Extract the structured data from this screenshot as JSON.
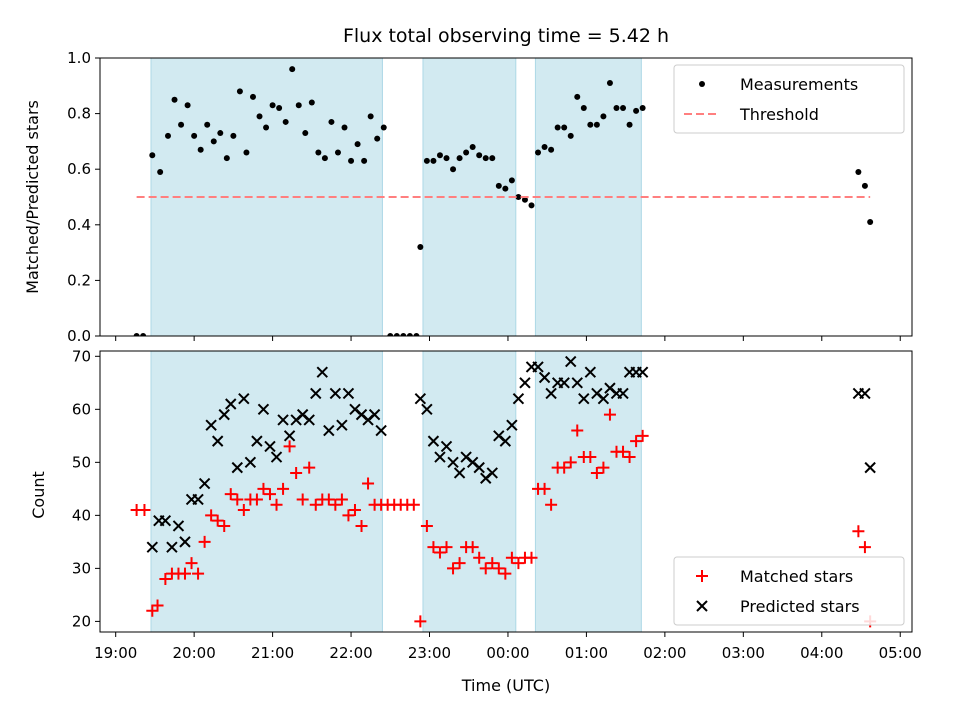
{
  "chart_data": [
    {
      "type": "scatter",
      "title": "Flux total observing time = 5.42 h",
      "xlabel": "",
      "ylabel": "Matched/Predicted stars",
      "ylim": [
        0,
        1.0
      ],
      "yticks": [
        "0.0",
        "0.2",
        "0.4",
        "0.6",
        "0.8",
        "1.0"
      ],
      "xticks": [
        "19:00",
        "20:00",
        "21:00",
        "22:00",
        "23:00",
        "00:00",
        "01:00",
        "02:00",
        "03:00",
        "04:00",
        "05:00"
      ],
      "show_x_tick_labels": false,
      "legend_position": "top-right",
      "shaded_intervals": [
        [
          "19:27",
          "22:24"
        ],
        [
          "22:55",
          "00:06"
        ],
        [
          "00:21",
          "01:42"
        ]
      ],
      "shade_color": "#add8e6",
      "series": [
        {
          "name": "Measurements",
          "marker": "dot",
          "color": "#000000",
          "points": [
            [
              "19:16",
              0.0
            ],
            [
              "19:21",
              0.0
            ],
            [
              "19:28",
              0.65
            ],
            [
              "19:34",
              0.59
            ],
            [
              "19:40",
              0.72
            ],
            [
              "19:45",
              0.85
            ],
            [
              "19:50",
              0.76
            ],
            [
              "19:55",
              0.83
            ],
            [
              "20:00",
              0.72
            ],
            [
              "20:05",
              0.67
            ],
            [
              "20:10",
              0.76
            ],
            [
              "20:15",
              0.7
            ],
            [
              "20:20",
              0.73
            ],
            [
              "20:25",
              0.64
            ],
            [
              "20:30",
              0.72
            ],
            [
              "20:35",
              0.88
            ],
            [
              "20:40",
              0.66
            ],
            [
              "20:45",
              0.86
            ],
            [
              "20:50",
              0.79
            ],
            [
              "20:55",
              0.75
            ],
            [
              "21:00",
              0.83
            ],
            [
              "21:05",
              0.82
            ],
            [
              "21:10",
              0.77
            ],
            [
              "21:15",
              0.96
            ],
            [
              "21:20",
              0.83
            ],
            [
              "21:25",
              0.73
            ],
            [
              "21:30",
              0.84
            ],
            [
              "21:35",
              0.66
            ],
            [
              "21:40",
              0.64
            ],
            [
              "21:45",
              0.77
            ],
            [
              "21:50",
              0.66
            ],
            [
              "21:55",
              0.75
            ],
            [
              "22:00",
              0.63
            ],
            [
              "22:05",
              0.69
            ],
            [
              "22:10",
              0.63
            ],
            [
              "22:15",
              0.79
            ],
            [
              "22:20",
              0.71
            ],
            [
              "22:25",
              0.75
            ],
            [
              "22:30",
              0.0
            ],
            [
              "22:35",
              0.0
            ],
            [
              "22:40",
              0.0
            ],
            [
              "22:45",
              0.0
            ],
            [
              "22:50",
              0.0
            ],
            [
              "22:53",
              0.32
            ],
            [
              "22:58",
              0.63
            ],
            [
              "23:03",
              0.63
            ],
            [
              "23:08",
              0.65
            ],
            [
              "23:13",
              0.64
            ],
            [
              "23:18",
              0.6
            ],
            [
              "23:23",
              0.64
            ],
            [
              "23:28",
              0.66
            ],
            [
              "23:33",
              0.68
            ],
            [
              "23:38",
              0.65
            ],
            [
              "23:43",
              0.64
            ],
            [
              "23:48",
              0.64
            ],
            [
              "23:53",
              0.54
            ],
            [
              "23:58",
              0.53
            ],
            [
              "00:03",
              0.56
            ],
            [
              "00:08",
              0.5
            ],
            [
              "00:13",
              0.49
            ],
            [
              "00:18",
              0.47
            ],
            [
              "00:23",
              0.66
            ],
            [
              "00:28",
              0.68
            ],
            [
              "00:33",
              0.67
            ],
            [
              "00:38",
              0.75
            ],
            [
              "00:43",
              0.75
            ],
            [
              "00:48",
              0.72
            ],
            [
              "00:53",
              0.86
            ],
            [
              "00:58",
              0.82
            ],
            [
              "01:03",
              0.76
            ],
            [
              "01:08",
              0.76
            ],
            [
              "01:13",
              0.79
            ],
            [
              "01:18",
              0.91
            ],
            [
              "01:23",
              0.82
            ],
            [
              "01:28",
              0.82
            ],
            [
              "01:33",
              0.76
            ],
            [
              "01:38",
              0.81
            ],
            [
              "01:43",
              0.82
            ],
            [
              "04:28",
              0.59
            ],
            [
              "04:33",
              0.54
            ],
            [
              "04:37",
              0.41
            ]
          ]
        },
        {
          "name": "Threshold",
          "style": "dashed",
          "color": "#ff7f7f",
          "points": [
            [
              "19:16",
              0.5
            ],
            [
              "04:37",
              0.5
            ]
          ]
        }
      ]
    },
    {
      "type": "scatter",
      "title": "",
      "xlabel": "Time (UTC)",
      "ylabel": "Count",
      "ylim": [
        18,
        71
      ],
      "yticks": [
        "20",
        "30",
        "40",
        "50",
        "60",
        "70"
      ],
      "xticks": [
        "19:00",
        "20:00",
        "21:00",
        "22:00",
        "23:00",
        "00:00",
        "01:00",
        "02:00",
        "03:00",
        "04:00",
        "05:00"
      ],
      "show_x_tick_labels": true,
      "legend_position": "bottom-right",
      "shaded_intervals": [
        [
          "19:27",
          "22:24"
        ],
        [
          "22:55",
          "00:06"
        ],
        [
          "00:21",
          "01:42"
        ]
      ],
      "shade_color": "#add8e6",
      "series": [
        {
          "name": "Matched stars",
          "marker": "plus",
          "color": "#ff0000",
          "points": [
            [
              "19:16",
              41
            ],
            [
              "19:22",
              41
            ],
            [
              "19:28",
              22
            ],
            [
              "19:32",
              23
            ],
            [
              "19:38",
              28
            ],
            [
              "19:43",
              29
            ],
            [
              "19:48",
              29
            ],
            [
              "19:53",
              29
            ],
            [
              "19:58",
              31
            ],
            [
              "20:03",
              29
            ],
            [
              "20:08",
              35
            ],
            [
              "20:13",
              40
            ],
            [
              "20:18",
              39
            ],
            [
              "20:23",
              38
            ],
            [
              "20:28",
              44
            ],
            [
              "20:33",
              43
            ],
            [
              "20:38",
              41
            ],
            [
              "20:43",
              43
            ],
            [
              "20:48",
              43
            ],
            [
              "20:53",
              45
            ],
            [
              "20:58",
              44
            ],
            [
              "21:03",
              42
            ],
            [
              "21:08",
              45
            ],
            [
              "21:13",
              53
            ],
            [
              "21:18",
              48
            ],
            [
              "21:23",
              43
            ],
            [
              "21:28",
              49
            ],
            [
              "21:33",
              42
            ],
            [
              "21:38",
              43
            ],
            [
              "21:43",
              43
            ],
            [
              "21:48",
              42
            ],
            [
              "21:53",
              43
            ],
            [
              "21:58",
              40
            ],
            [
              "22:03",
              41
            ],
            [
              "22:08",
              38
            ],
            [
              "22:13",
              46
            ],
            [
              "22:18",
              42
            ],
            [
              "22:23",
              42
            ],
            [
              "22:28",
              42
            ],
            [
              "22:33",
              42
            ],
            [
              "22:38",
              42
            ],
            [
              "22:43",
              42
            ],
            [
              "22:48",
              42
            ],
            [
              "22:53",
              20
            ],
            [
              "22:58",
              38
            ],
            [
              "23:03",
              34
            ],
            [
              "23:08",
              33
            ],
            [
              "23:13",
              34
            ],
            [
              "23:18",
              30
            ],
            [
              "23:23",
              31
            ],
            [
              "23:28",
              34
            ],
            [
              "23:33",
              34
            ],
            [
              "23:38",
              32
            ],
            [
              "23:43",
              30
            ],
            [
              "23:48",
              31
            ],
            [
              "23:53",
              30
            ],
            [
              "23:58",
              29
            ],
            [
              "00:03",
              32
            ],
            [
              "00:08",
              31
            ],
            [
              "00:13",
              32
            ],
            [
              "00:18",
              32
            ],
            [
              "00:23",
              45
            ],
            [
              "00:28",
              45
            ],
            [
              "00:33",
              42
            ],
            [
              "00:38",
              49
            ],
            [
              "00:43",
              49
            ],
            [
              "00:48",
              50
            ],
            [
              "00:53",
              56
            ],
            [
              "00:58",
              51
            ],
            [
              "01:03",
              51
            ],
            [
              "01:08",
              48
            ],
            [
              "01:13",
              49
            ],
            [
              "01:18",
              59
            ],
            [
              "01:23",
              52
            ],
            [
              "01:28",
              52
            ],
            [
              "01:33",
              51
            ],
            [
              "01:38",
              54
            ],
            [
              "01:43",
              55
            ],
            [
              "04:28",
              37
            ],
            [
              "04:33",
              34
            ],
            [
              "04:37",
              20
            ]
          ]
        },
        {
          "name": "Predicted stars",
          "marker": "x",
          "color": "#000000",
          "points": [
            [
              "19:28",
              34
            ],
            [
              "19:33",
              39
            ],
            [
              "19:38",
              39
            ],
            [
              "19:43",
              34
            ],
            [
              "19:48",
              38
            ],
            [
              "19:53",
              35
            ],
            [
              "19:58",
              43
            ],
            [
              "20:03",
              43
            ],
            [
              "20:08",
              46
            ],
            [
              "20:13",
              57
            ],
            [
              "20:18",
              54
            ],
            [
              "20:23",
              59
            ],
            [
              "20:28",
              61
            ],
            [
              "20:33",
              49
            ],
            [
              "20:38",
              62
            ],
            [
              "20:43",
              50
            ],
            [
              "20:48",
              54
            ],
            [
              "20:53",
              60
            ],
            [
              "20:58",
              53
            ],
            [
              "21:03",
              51
            ],
            [
              "21:08",
              58
            ],
            [
              "21:13",
              55
            ],
            [
              "21:18",
              58
            ],
            [
              "21:23",
              59
            ],
            [
              "21:28",
              58
            ],
            [
              "21:33",
              63
            ],
            [
              "21:38",
              67
            ],
            [
              "21:43",
              56
            ],
            [
              "21:48",
              63
            ],
            [
              "21:53",
              57
            ],
            [
              "21:58",
              63
            ],
            [
              "22:03",
              60
            ],
            [
              "22:08",
              59
            ],
            [
              "22:13",
              58
            ],
            [
              "22:18",
              59
            ],
            [
              "22:23",
              56
            ],
            [
              "22:53",
              62
            ],
            [
              "22:58",
              60
            ],
            [
              "23:03",
              54
            ],
            [
              "23:08",
              51
            ],
            [
              "23:13",
              53
            ],
            [
              "23:18",
              50
            ],
            [
              "23:23",
              48
            ],
            [
              "23:28",
              51
            ],
            [
              "23:33",
              50
            ],
            [
              "23:38",
              49
            ],
            [
              "23:43",
              47
            ],
            [
              "23:48",
              48
            ],
            [
              "23:53",
              55
            ],
            [
              "23:58",
              54
            ],
            [
              "00:03",
              57
            ],
            [
              "00:08",
              62
            ],
            [
              "00:13",
              65
            ],
            [
              "00:18",
              68
            ],
            [
              "00:23",
              68
            ],
            [
              "00:28",
              66
            ],
            [
              "00:33",
              63
            ],
            [
              "00:38",
              65
            ],
            [
              "00:43",
              65
            ],
            [
              "00:48",
              69
            ],
            [
              "00:53",
              65
            ],
            [
              "00:58",
              62
            ],
            [
              "01:03",
              67
            ],
            [
              "01:08",
              63
            ],
            [
              "01:13",
              62
            ],
            [
              "01:18",
              64
            ],
            [
              "01:23",
              63
            ],
            [
              "01:28",
              63
            ],
            [
              "01:33",
              67
            ],
            [
              "01:38",
              67
            ],
            [
              "01:43",
              67
            ],
            [
              "04:28",
              63
            ],
            [
              "04:33",
              63
            ],
            [
              "04:37",
              49
            ]
          ]
        }
      ]
    }
  ]
}
